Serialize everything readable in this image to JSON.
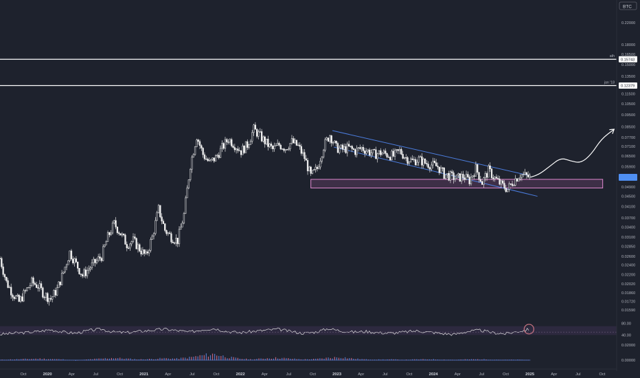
{
  "chart_data": {
    "type": "candlestick",
    "title": "",
    "symbol_badge": "BTC",
    "y_scale": "log",
    "ylim": [
      0.0138,
      0.25
    ],
    "y_ticks": [
      {
        "value": 0.22,
        "label": "0.22000"
      },
      {
        "value": 0.18,
        "label": "0.18000"
      },
      {
        "value": 0.165,
        "label": "0.16500"
      },
      {
        "value": 0.15,
        "label": "0.15000"
      },
      {
        "value": 0.135,
        "label": "0.13500"
      },
      {
        "value": 0.115,
        "label": "0.11500"
      },
      {
        "value": 0.105,
        "label": "0.10500"
      },
      {
        "value": 0.095,
        "label": "0.09500"
      },
      {
        "value": 0.085,
        "label": "0.08500"
      },
      {
        "value": 0.077,
        "label": "0.07700"
      },
      {
        "value": 0.071,
        "label": "0.07100"
      },
      {
        "value": 0.065,
        "label": "0.06500"
      },
      {
        "value": 0.059,
        "label": "0.05900"
      },
      {
        "value": 0.049,
        "label": "0.04900"
      },
      {
        "value": 0.045,
        "label": "0.04500"
      },
      {
        "value": 0.041,
        "label": "0.04100"
      },
      {
        "value": 0.037,
        "label": "0.03700"
      },
      {
        "value": 0.034,
        "label": "0.03400"
      },
      {
        "value": 0.031,
        "label": "0.03100"
      },
      {
        "value": 0.0285,
        "label": "0.02850"
      },
      {
        "value": 0.026,
        "label": "0.02600"
      },
      {
        "value": 0.024,
        "label": "0.02400"
      },
      {
        "value": 0.022,
        "label": "0.02200"
      },
      {
        "value": 0.0202,
        "label": "0.02020"
      },
      {
        "value": 0.0186,
        "label": "0.01860"
      },
      {
        "value": 0.0172,
        "label": "0.01720"
      },
      {
        "value": 0.0159,
        "label": "0.01590"
      }
    ],
    "current_price_badge": {
      "value": 0.0535,
      "label": ""
    },
    "x_ticks": [
      {
        "label": "Oct",
        "bold": false
      },
      {
        "label": "2020",
        "bold": true
      },
      {
        "label": "Apr",
        "bold": false
      },
      {
        "label": "Jul",
        "bold": false
      },
      {
        "label": "Oct",
        "bold": false
      },
      {
        "label": "2021",
        "bold": true
      },
      {
        "label": "Apr",
        "bold": false
      },
      {
        "label": "Jul",
        "bold": false
      },
      {
        "label": "Oct",
        "bold": false
      },
      {
        "label": "2022",
        "bold": true
      },
      {
        "label": "Apr",
        "bold": false
      },
      {
        "label": "Jul",
        "bold": false
      },
      {
        "label": "Oct",
        "bold": false
      },
      {
        "label": "2023",
        "bold": true
      },
      {
        "label": "Apr",
        "bold": false
      },
      {
        "label": "Jul",
        "bold": false
      },
      {
        "label": "Oct",
        "bold": false
      },
      {
        "label": "2024",
        "bold": true
      },
      {
        "label": "Apr",
        "bold": false
      },
      {
        "label": "Jul",
        "bold": false
      },
      {
        "label": "Oct",
        "bold": false
      },
      {
        "label": "2025",
        "bold": true
      },
      {
        "label": "Apr",
        "bold": false
      },
      {
        "label": "Jul",
        "bold": false
      },
      {
        "label": "Oct",
        "bold": false
      }
    ],
    "horizontal_levels": [
      {
        "name": "ath",
        "value": 0.15743,
        "label": "0.15743"
      },
      {
        "name": "jan '18",
        "value": 0.12379,
        "label": "0.12379"
      }
    ],
    "support_zone": {
      "from": 0.0485,
      "to": 0.0525
    },
    "price_path": [
      [
        0,
        0.0255
      ],
      [
        0.5,
        0.0205
      ],
      [
        1.0,
        0.0185
      ],
      [
        1.5,
        0.0171
      ],
      [
        2.0,
        0.0188
      ],
      [
        2.5,
        0.0205
      ],
      [
        3.0,
        0.0198
      ],
      [
        3.5,
        0.0183
      ],
      [
        4.0,
        0.0176
      ],
      [
        4.5,
        0.0192
      ],
      [
        5.0,
        0.0225
      ],
      [
        5.5,
        0.027
      ],
      [
        6.0,
        0.0242
      ],
      [
        6.5,
        0.0218
      ],
      [
        7.0,
        0.0232
      ],
      [
        7.5,
        0.0246
      ],
      [
        8.0,
        0.026
      ],
      [
        8.5,
        0.031
      ],
      [
        9.0,
        0.035
      ],
      [
        9.5,
        0.032
      ],
      [
        10.0,
        0.029
      ],
      [
        10.5,
        0.03
      ],
      [
        11.0,
        0.0278
      ],
      [
        11.5,
        0.026
      ],
      [
        12.0,
        0.031
      ],
      [
        12.5,
        0.04
      ],
      [
        13.0,
        0.033
      ],
      [
        13.5,
        0.031
      ],
      [
        14.0,
        0.03
      ],
      [
        14.5,
        0.038
      ],
      [
        15.0,
        0.06
      ],
      [
        15.5,
        0.078
      ],
      [
        16.0,
        0.066
      ],
      [
        16.5,
        0.061
      ],
      [
        17.0,
        0.064
      ],
      [
        17.5,
        0.07
      ],
      [
        18.0,
        0.076
      ],
      [
        18.5,
        0.072
      ],
      [
        19.0,
        0.068
      ],
      [
        19.5,
        0.072
      ],
      [
        20.0,
        0.083
      ],
      [
        20.5,
        0.078
      ],
      [
        21.0,
        0.073
      ],
      [
        21.5,
        0.069
      ],
      [
        22.0,
        0.072
      ],
      [
        22.5,
        0.07
      ],
      [
        23.0,
        0.074
      ],
      [
        23.5,
        0.071
      ],
      [
        24.0,
        0.064
      ],
      [
        24.5,
        0.054
      ],
      [
        25.0,
        0.058
      ],
      [
        25.5,
        0.071
      ],
      [
        26.0,
        0.079
      ],
      [
        26.5,
        0.07
      ],
      [
        27.0,
        0.069
      ],
      [
        27.5,
        0.07
      ],
      [
        28.0,
        0.068
      ],
      [
        28.5,
        0.07
      ],
      [
        29.0,
        0.068
      ],
      [
        29.5,
        0.066
      ],
      [
        30.0,
        0.067
      ],
      [
        30.5,
        0.066
      ],
      [
        31.0,
        0.065
      ],
      [
        31.5,
        0.068
      ],
      [
        32.0,
        0.064
      ],
      [
        32.5,
        0.062
      ],
      [
        33.0,
        0.063
      ],
      [
        33.5,
        0.061
      ],
      [
        34.0,
        0.06
      ],
      [
        34.5,
        0.059
      ],
      [
        35.0,
        0.055
      ],
      [
        35.5,
        0.054
      ],
      [
        36.0,
        0.053
      ],
      [
        36.5,
        0.054
      ],
      [
        37.0,
        0.052
      ],
      [
        37.5,
        0.058
      ],
      [
        38.0,
        0.051
      ],
      [
        38.5,
        0.057
      ],
      [
        39.0,
        0.053
      ],
      [
        39.5,
        0.05
      ],
      [
        40.0,
        0.048
      ],
      [
        40.5,
        0.052
      ],
      [
        41.0,
        0.055
      ],
      [
        41.5,
        0.054
      ],
      [
        41.8,
        0.0535
      ]
    ],
    "projection_path": [
      [
        41.8,
        0.0535
      ],
      [
        42.5,
        0.055
      ],
      [
        43.3,
        0.059
      ],
      [
        44.2,
        0.064
      ],
      [
        45.0,
        0.062
      ],
      [
        45.8,
        0.061
      ],
      [
        46.6,
        0.066
      ],
      [
        47.4,
        0.076
      ],
      [
        48.4,
        0.083
      ]
    ],
    "channel": {
      "start": [
        26.2,
        0.082
      ],
      "end": [
        41.6,
        0.055
      ],
      "offset_ratio": 0.86
    },
    "rsi": {
      "tick_labels": [
        "80.00",
        "40.00"
      ],
      "band": [
        40,
        70
      ],
      "values": [
        42,
        46,
        48,
        52,
        58,
        50,
        46,
        55,
        60,
        50,
        48,
        52,
        56,
        60,
        55,
        50,
        58,
        62,
        52,
        48,
        52,
        56,
        60,
        52,
        46,
        50,
        62,
        54,
        50,
        52,
        48,
        46,
        50,
        54,
        50,
        45,
        42,
        52,
        56,
        48,
        44,
        52,
        60
      ]
    },
    "macd": {
      "tick_labels": [
        "0.02000",
        "0.00000"
      ],
      "histogram": [
        0.0005,
        0.001,
        0.0015,
        0.002,
        0.0015,
        0.001,
        -0.0005,
        0.001,
        0.002,
        0.003,
        0.002,
        0.001,
        0.0015,
        0.0025,
        0.002,
        0.0035,
        0.006,
        0.008,
        0.004,
        0.002,
        0.001,
        0.0025,
        0.003,
        0.002,
        0.001,
        0.0015,
        0.003,
        0.004,
        0.002,
        0.001,
        0.0008,
        0.001,
        0.0005,
        0.001,
        0.0012,
        0.0008,
        0.0005,
        0.001,
        0.0012,
        0.0008,
        0.0005,
        0.0006,
        0.0004
      ]
    }
  }
}
